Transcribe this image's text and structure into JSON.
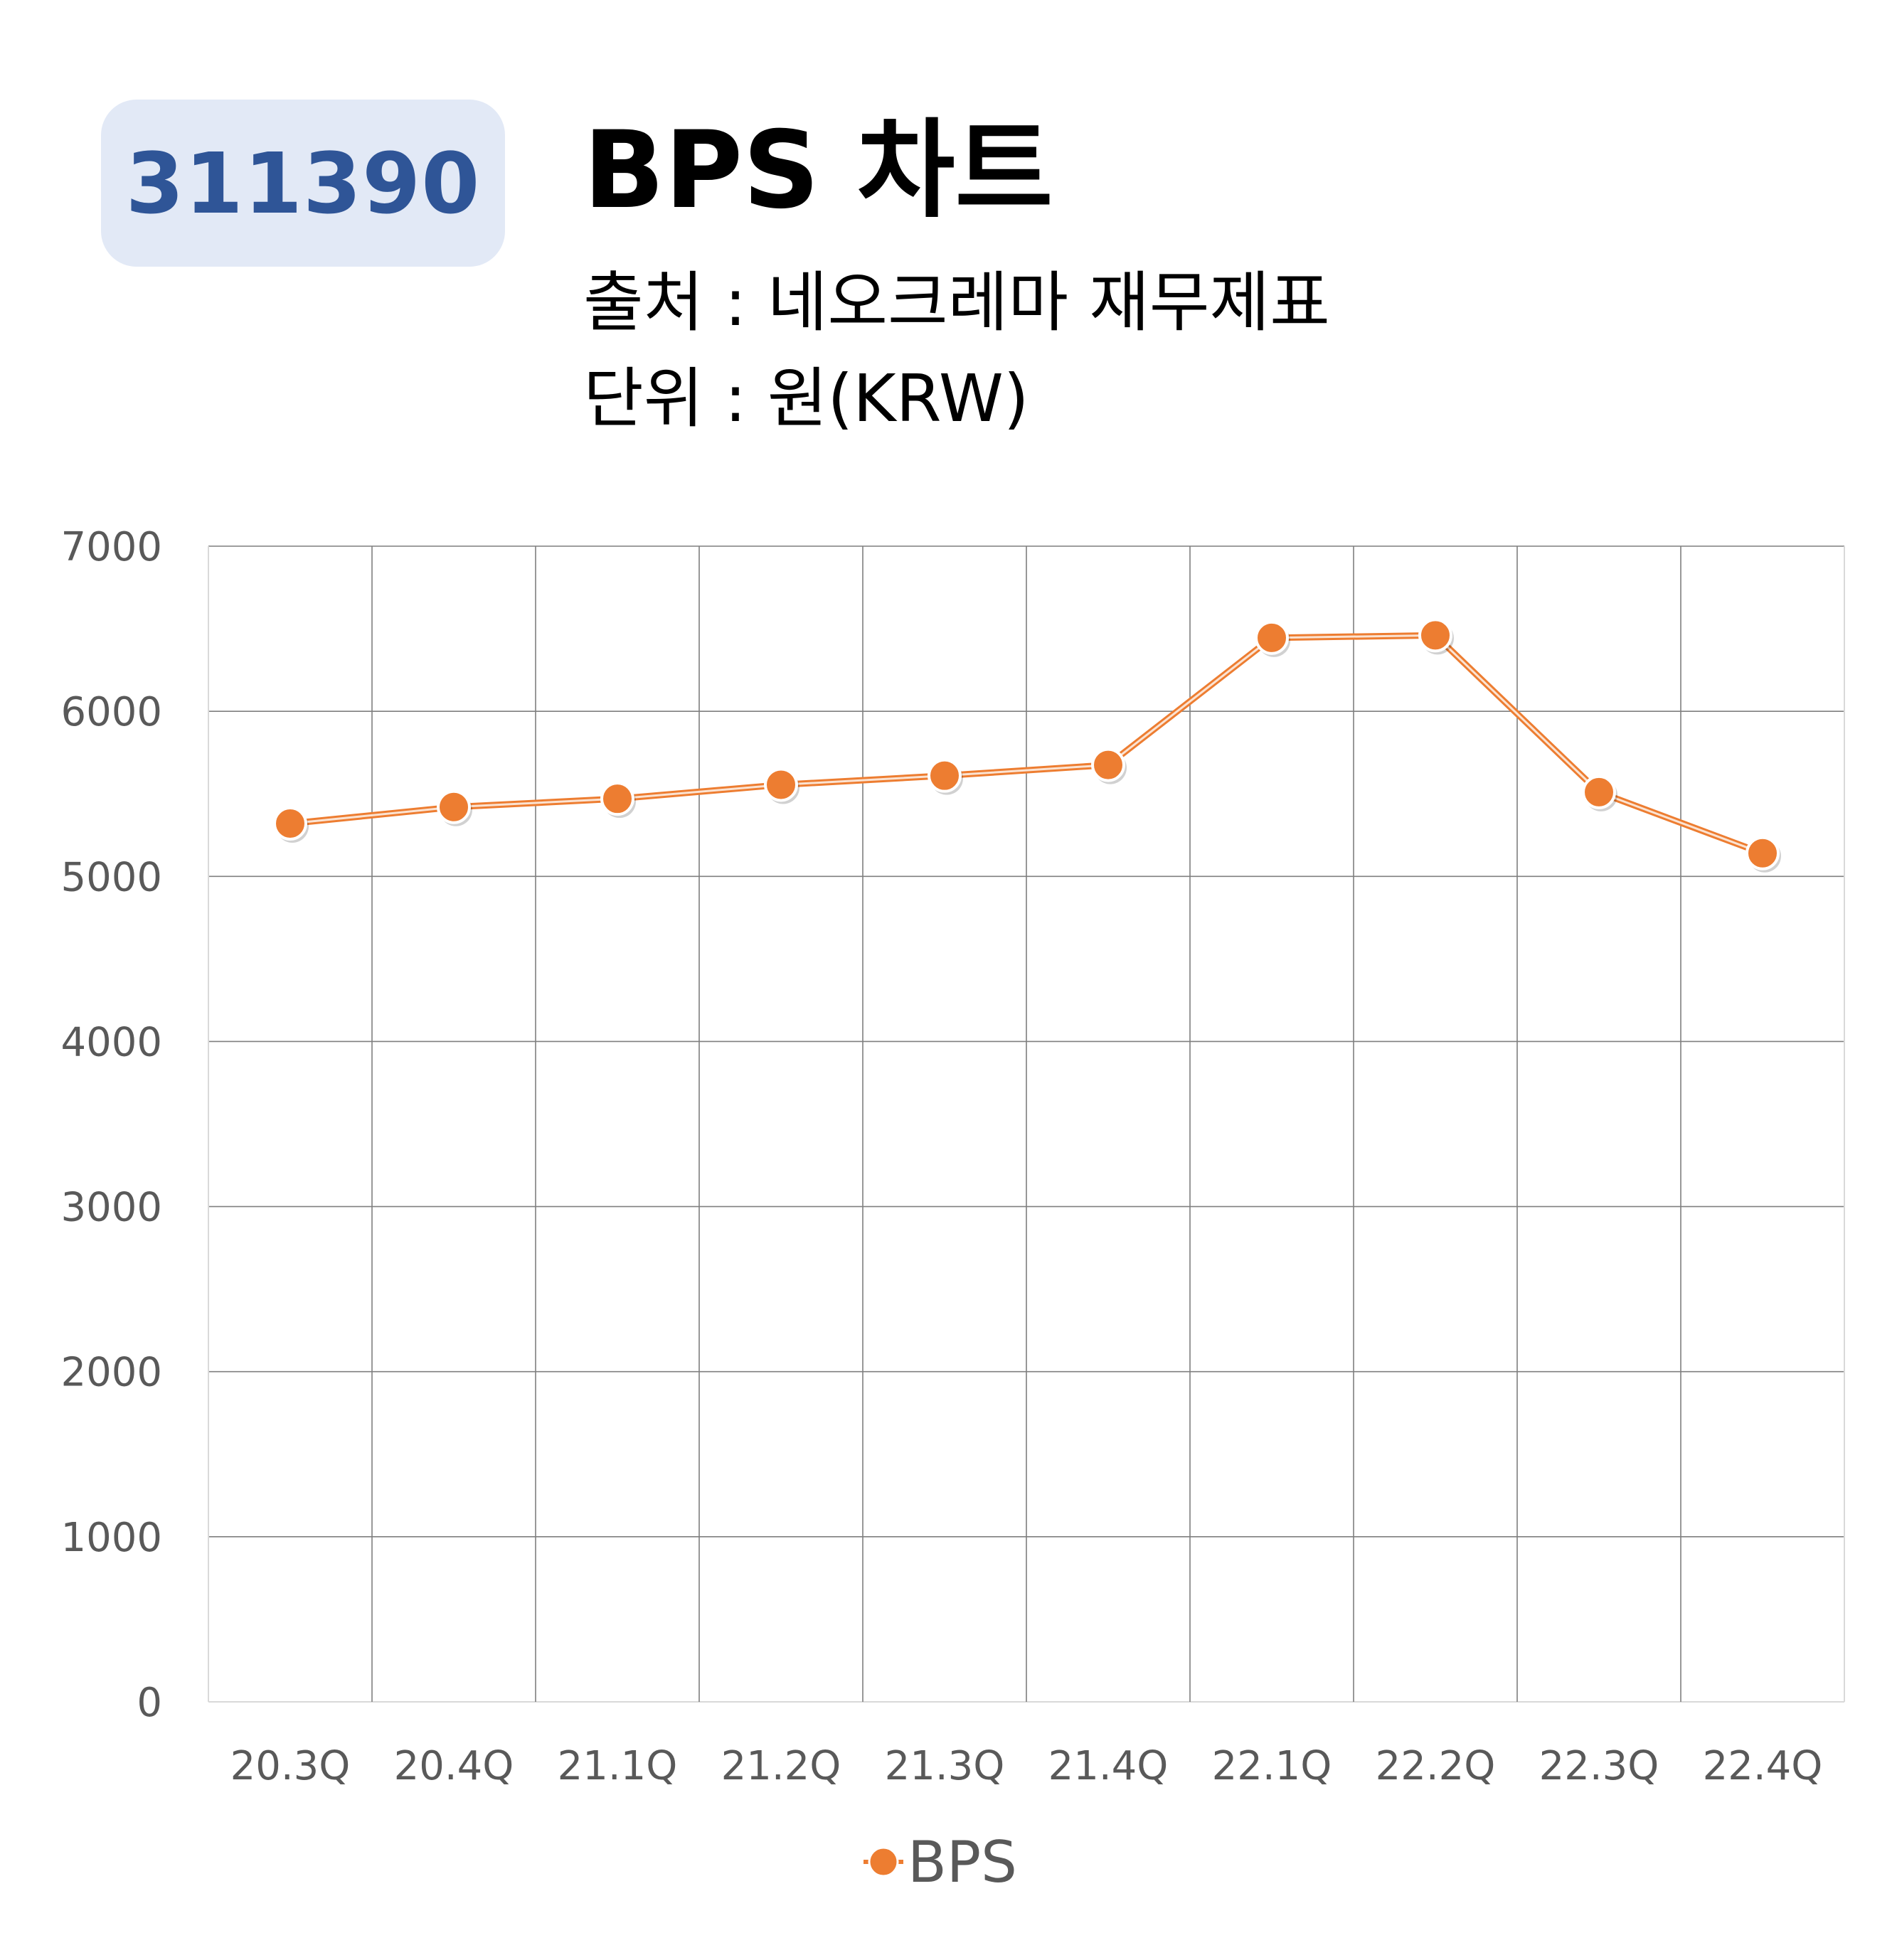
{
  "header": {
    "code": "311390",
    "title": "BPS 차트",
    "source_line": "출처 : 네오크레마 재무제표",
    "unit_line": "단위 : 원(KRW)"
  },
  "colors": {
    "badge_bg": "#e2e9f6",
    "badge_text": "#2f5597",
    "series": "#ed7d31",
    "grid": "#7f7f7f",
    "tick_text": "#595959"
  },
  "chart_data": {
    "type": "line",
    "categories": [
      "20.3Q",
      "20.4Q",
      "21.1Q",
      "21.2Q",
      "21.3Q",
      "21.4Q",
      "22.1Q",
      "22.2Q",
      "22.3Q",
      "22.4Q"
    ],
    "series": [
      {
        "name": "BPS",
        "values": [
          5320,
          5420,
          5470,
          5555,
          5610,
          5675,
          6445,
          6460,
          5510,
          5140
        ]
      }
    ],
    "ylim": [
      0,
      7000
    ],
    "yticks": [
      0,
      1000,
      2000,
      3000,
      4000,
      5000,
      6000,
      7000
    ],
    "grid": true,
    "legend": "bottom"
  }
}
